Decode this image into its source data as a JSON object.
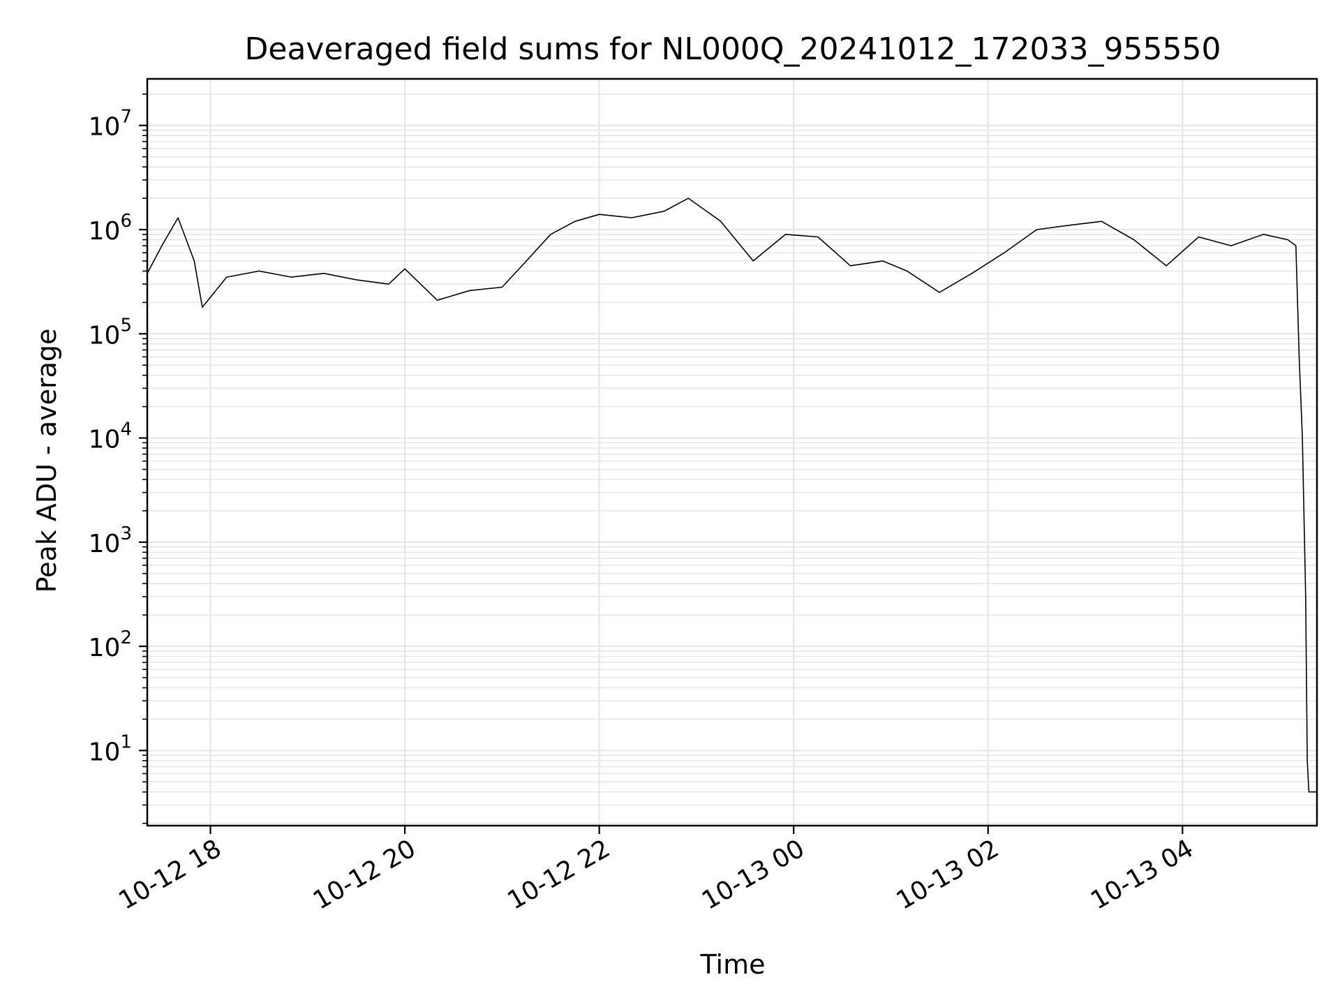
{
  "chart_data": {
    "type": "line",
    "title": "Deaveraged field sums for NL000Q_20241012_172033_955550",
    "xlabel": "Time",
    "ylabel": "Peak ADU - average",
    "yscale": "log",
    "grid": true,
    "line_color": "#000000",
    "grid_color": "#e6e6e6",
    "xlim": [
      "2024-10-12T17:21:00",
      "2024-10-13T05:23:00"
    ],
    "ylim": [
      1.9,
      28000000
    ],
    "x_ticks": [
      {
        "t": "2024-10-12T18:00:00",
        "label": "10-12 18"
      },
      {
        "t": "2024-10-12T20:00:00",
        "label": "10-12 20"
      },
      {
        "t": "2024-10-12T22:00:00",
        "label": "10-12 22"
      },
      {
        "t": "2024-10-13T00:00:00",
        "label": "10-13 00"
      },
      {
        "t": "2024-10-13T02:00:00",
        "label": "10-13 02"
      },
      {
        "t": "2024-10-13T04:00:00",
        "label": "10-13 04"
      }
    ],
    "y_ticks": [
      {
        "v": 10,
        "base": "10",
        "exp": "1"
      },
      {
        "v": 100,
        "base": "10",
        "exp": "2"
      },
      {
        "v": 1000,
        "base": "10",
        "exp": "3"
      },
      {
        "v": 10000,
        "base": "10",
        "exp": "4"
      },
      {
        "v": 100000,
        "base": "10",
        "exp": "5"
      },
      {
        "v": 1000000,
        "base": "10",
        "exp": "6"
      },
      {
        "v": 10000000,
        "base": "10",
        "exp": "7"
      }
    ],
    "series": [
      {
        "x": [
          "2024-10-12T17:21:00",
          "2024-10-12T17:30:00",
          "2024-10-12T17:40:00",
          "2024-10-12T17:50:00",
          "2024-10-12T17:55:00",
          "2024-10-12T18:10:00",
          "2024-10-12T18:30:00",
          "2024-10-12T18:50:00",
          "2024-10-12T19:10:00",
          "2024-10-12T19:30:00",
          "2024-10-12T19:50:00",
          "2024-10-12T20:00:00",
          "2024-10-12T20:20:00",
          "2024-10-12T20:40:00",
          "2024-10-12T21:00:00",
          "2024-10-12T21:15:00",
          "2024-10-12T21:30:00",
          "2024-10-12T21:45:00",
          "2024-10-12T22:00:00",
          "2024-10-12T22:20:00",
          "2024-10-12T22:40:00",
          "2024-10-12T22:55:00",
          "2024-10-12T23:15:00",
          "2024-10-12T23:35:00",
          "2024-10-12T23:55:00",
          "2024-10-13T00:15:00",
          "2024-10-13T00:35:00",
          "2024-10-13T00:55:00",
          "2024-10-13T01:10:00",
          "2024-10-13T01:30:00",
          "2024-10-13T01:50:00",
          "2024-10-13T02:10:00",
          "2024-10-13T02:30:00",
          "2024-10-13T02:50:00",
          "2024-10-13T03:10:00",
          "2024-10-13T03:30:00",
          "2024-10-13T03:50:00",
          "2024-10-13T04:10:00",
          "2024-10-13T04:30:00",
          "2024-10-13T04:50:00",
          "2024-10-13T05:05:00",
          "2024-10-13T05:10:00",
          "2024-10-13T05:12:00",
          "2024-10-13T05:14:00",
          "2024-10-13T05:16:00",
          "2024-10-13T05:17:00",
          "2024-10-13T05:18:00",
          "2024-10-13T05:23:00"
        ],
        "y": [
          380000,
          700000,
          1300000,
          500000,
          180000,
          350000,
          400000,
          350000,
          380000,
          330000,
          300000,
          420000,
          210000,
          260000,
          280000,
          500000,
          900000,
          1200000,
          1400000,
          1300000,
          1500000,
          2000000,
          1200000,
          500000,
          900000,
          850000,
          450000,
          500000,
          400000,
          250000,
          380000,
          600000,
          1000000,
          1100000,
          1200000,
          800000,
          450000,
          850000,
          700000,
          900000,
          800000,
          700000,
          60000,
          10000,
          300,
          8,
          4,
          4
        ]
      }
    ]
  }
}
